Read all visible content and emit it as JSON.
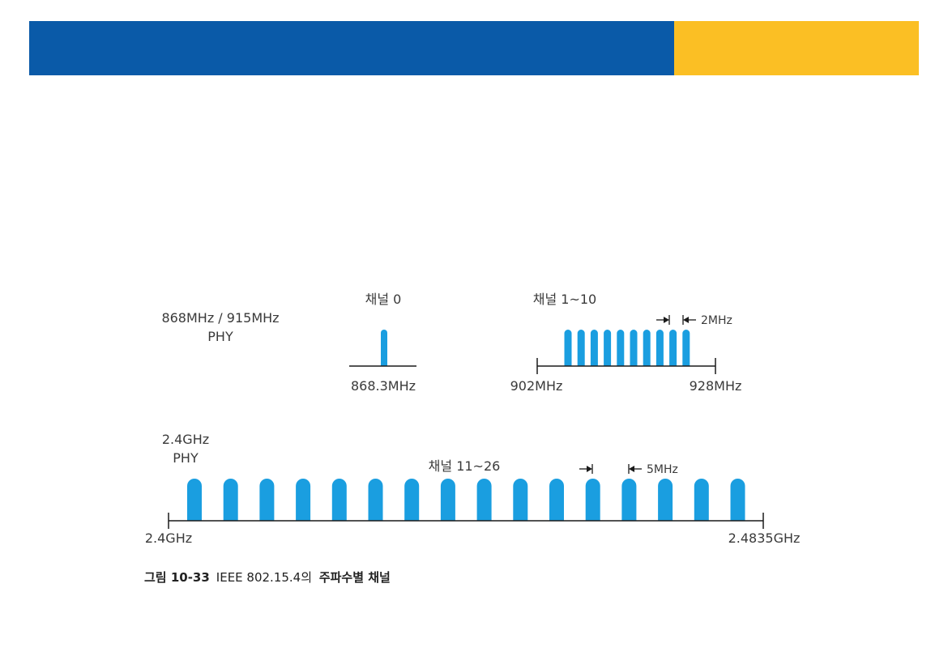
{
  "colors": {
    "banner_blue": "#0a5aa8",
    "banner_amber": "#fbbf24",
    "channel": "#1a9ee0"
  },
  "low_band": {
    "phy_label_line1": "868MHz / 915MHz",
    "phy_label_line2": "PHY",
    "channel0": {
      "title": "채널 0",
      "freq_label": "868.3MHz",
      "channel_count": 1
    },
    "channels_1_10": {
      "title": "채널 1~10",
      "start_label": "902MHz",
      "end_label": "928MHz",
      "spacing_label": "2MHz",
      "channel_count": 10
    }
  },
  "high_band": {
    "phy_label_line1": "2.4GHz",
    "phy_label_line2": "PHY",
    "title": "채널 11~26",
    "start_label": "2.4GHz",
    "end_label": "2.4835GHz",
    "spacing_label": "5MHz",
    "channel_count": 16
  },
  "caption": {
    "figure_label": "그림 10-33",
    "text_plain": "IEEE 802.15.4의",
    "text_bold": "주파수별 채널"
  }
}
